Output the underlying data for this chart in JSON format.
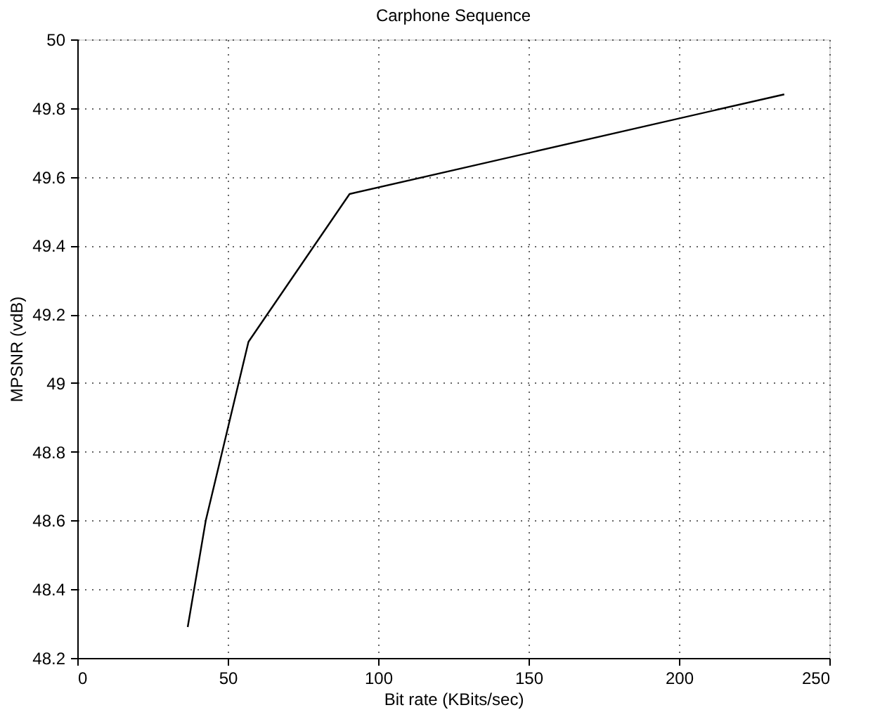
{
  "chart_data": {
    "type": "line",
    "title": "Carphone Sequence",
    "xlabel": "Bit rate (KBits/sec)",
    "ylabel": "MPSNR (vdB)",
    "x": [
      36.7,
      42.7,
      56.9,
      90.5,
      235
    ],
    "series": [
      {
        "color": "#000000",
        "values": [
          48.29,
          48.6,
          49.12,
          49.55,
          49.84
        ]
      }
    ],
    "xlim": [
      0,
      250
    ],
    "xticks": [
      0,
      50,
      100,
      150,
      200,
      250
    ],
    "ylim": [
      48.2,
      50
    ],
    "yticks": [
      48.2,
      48.4,
      48.6,
      48.8,
      49,
      49.2,
      49.4,
      49.6,
      49.8,
      50
    ],
    "grid": true,
    "marker": "none",
    "line_style": "solid"
  }
}
